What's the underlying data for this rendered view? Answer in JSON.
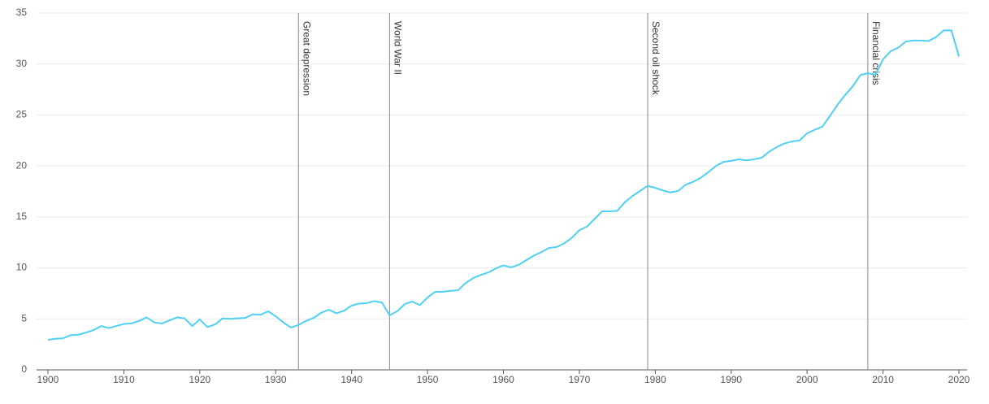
{
  "chart_data": {
    "type": "line",
    "color": "#4fd1f4",
    "grid": true,
    "xlim": [
      1900,
      2020
    ],
    "xticks": [
      1900,
      1910,
      1920,
      1930,
      1940,
      1950,
      1960,
      1970,
      1980,
      1990,
      2000,
      2010,
      2020
    ],
    "ylim": [
      0,
      35
    ],
    "yticks": [
      0,
      5,
      10,
      15,
      20,
      25,
      30,
      35
    ],
    "annotations": [
      {
        "x": 1933,
        "label": "Great depression"
      },
      {
        "x": 1945,
        "label": "World War II"
      },
      {
        "x": 1979,
        "label": "Second oil shock"
      },
      {
        "x": 2008,
        "label": "Financial crisis"
      }
    ],
    "x": [
      1900,
      1901,
      1902,
      1903,
      1904,
      1905,
      1906,
      1907,
      1908,
      1909,
      1910,
      1911,
      1912,
      1913,
      1914,
      1915,
      1916,
      1917,
      1918,
      1919,
      1920,
      1921,
      1922,
      1923,
      1924,
      1925,
      1926,
      1927,
      1928,
      1929,
      1930,
      1931,
      1932,
      1933,
      1934,
      1935,
      1936,
      1937,
      1938,
      1939,
      1940,
      1941,
      1942,
      1943,
      1944,
      1945,
      1946,
      1947,
      1948,
      1949,
      1950,
      1951,
      1952,
      1953,
      1954,
      1955,
      1956,
      1957,
      1958,
      1959,
      1960,
      1961,
      1962,
      1963,
      1964,
      1965,
      1966,
      1967,
      1968,
      1969,
      1970,
      1971,
      1972,
      1973,
      1974,
      1975,
      1976,
      1977,
      1978,
      1979,
      1980,
      1981,
      1982,
      1983,
      1984,
      1985,
      1986,
      1987,
      1988,
      1989,
      1990,
      1991,
      1992,
      1993,
      1994,
      1995,
      1996,
      1997,
      1998,
      1999,
      2000,
      2001,
      2002,
      2003,
      2004,
      2005,
      2006,
      2007,
      2008,
      2009,
      2010,
      2011,
      2012,
      2013,
      2014,
      2015,
      2016,
      2017,
      2018,
      2019,
      2020
    ],
    "values": [
      2.95,
      3.05,
      3.1,
      3.4,
      3.45,
      3.65,
      3.9,
      4.3,
      4.1,
      4.3,
      4.5,
      4.55,
      4.8,
      5.15,
      4.65,
      4.55,
      4.85,
      5.15,
      5.05,
      4.3,
      4.95,
      4.2,
      4.45,
      5.05,
      5.0,
      5.05,
      5.1,
      5.45,
      5.4,
      5.75,
      5.25,
      4.65,
      4.15,
      4.4,
      4.8,
      5.1,
      5.6,
      5.9,
      5.55,
      5.8,
      6.3,
      6.5,
      6.55,
      6.75,
      6.6,
      5.35,
      5.75,
      6.45,
      6.7,
      6.35,
      7.1,
      7.65,
      7.65,
      7.75,
      7.8,
      8.5,
      9.0,
      9.3,
      9.55,
      9.95,
      10.25,
      10.05,
      10.3,
      10.75,
      11.2,
      11.55,
      11.95,
      12.05,
      12.4,
      12.95,
      13.7,
      14.05,
      14.8,
      15.55,
      15.55,
      15.6,
      16.45,
      17.05,
      17.55,
      18.05,
      17.85,
      17.6,
      17.4,
      17.55,
      18.15,
      18.45,
      18.85,
      19.4,
      20.0,
      20.4,
      20.5,
      20.65,
      20.55,
      20.65,
      20.8,
      21.4,
      21.85,
      22.2,
      22.4,
      22.5,
      23.2,
      23.55,
      23.85,
      24.9,
      26.0,
      26.95,
      27.8,
      28.9,
      29.1,
      28.95,
      30.45,
      31.25,
      31.6,
      32.2,
      32.3,
      32.3,
      32.25,
      32.65,
      33.3,
      33.3,
      30.75
    ]
  }
}
